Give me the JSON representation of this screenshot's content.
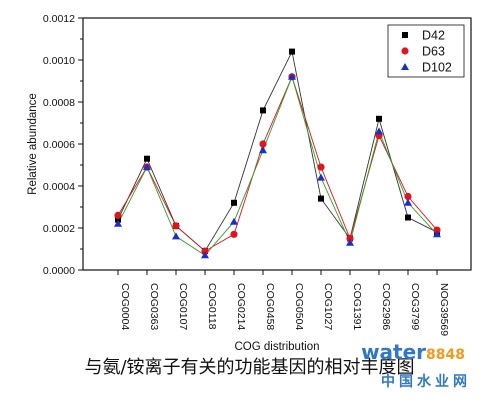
{
  "chart_data": {
    "type": "line",
    "xlabel": "COG distribution",
    "ylabel": "Relative abundance",
    "ylim": [
      0,
      0.0012
    ],
    "yticks": [
      "0.0000",
      "0.0002",
      "0.0004",
      "0.0006",
      "0.0008",
      "0.0010",
      "0.0012"
    ],
    "categories": [
      "COG0004",
      "COG0363",
      "COG0107",
      "COG0118",
      "COG0214",
      "COG0458",
      "COG0504",
      "COG1027",
      "COG1391",
      "COG2986",
      "COG3799",
      "NOG39569"
    ],
    "legend_position": "top-right",
    "series": [
      {
        "name": "D42",
        "color": "#000000",
        "line_color": "#333333",
        "marker": "square",
        "values": [
          0.00024,
          0.00053,
          0.00021,
          9e-05,
          0.00032,
          0.00076,
          0.00104,
          0.00034,
          0.00015,
          0.00072,
          0.00025,
          0.00018
        ]
      },
      {
        "name": "D63",
        "color": "#e0141e",
        "line_color": "#e0141e",
        "marker": "circle",
        "values": [
          0.00026,
          0.00049,
          0.00021,
          9e-05,
          0.00017,
          0.0006,
          0.00092,
          0.00049,
          0.00015,
          0.00064,
          0.00035,
          0.00019
        ]
      },
      {
        "name": "D102",
        "color": "#1c2fc4",
        "line_color": "#2aa52a",
        "marker": "triangle",
        "values": [
          0.00022,
          0.00049,
          0.00016,
          7e-05,
          0.00023,
          0.00057,
          0.00092,
          0.00044,
          0.00013,
          0.00066,
          0.00032,
          0.00017
        ]
      }
    ]
  },
  "caption": "与氨/铵离子有关的功能基因的相对丰度图",
  "watermark": {
    "brand_part1": "water",
    "brand_part2": "8848",
    "subtitle": "中国水业网"
  }
}
